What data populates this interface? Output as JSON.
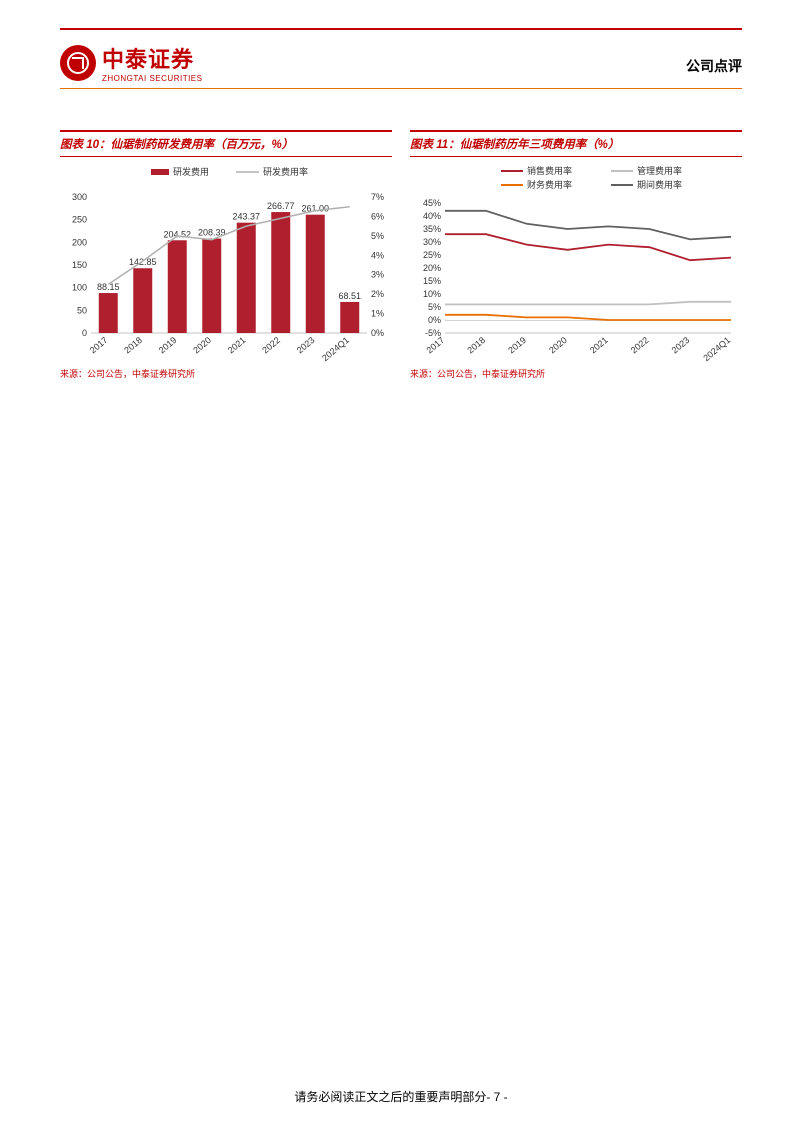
{
  "header": {
    "logo_cn": "中泰证券",
    "logo_en": "ZHONGTAI SECURITIES",
    "doc_type": "公司点评"
  },
  "chart10": {
    "title": "图表 10：仙琚制药研发费用率（百万元，%）",
    "type": "bar-line-combo",
    "legend_bar": "研发费用",
    "legend_line": "研发费用率",
    "categories": [
      "2017",
      "2018",
      "2019",
      "2020",
      "2021",
      "2022",
      "2023",
      "2024Q1"
    ],
    "bar_values": [
      88.15,
      142.85,
      204.52,
      208.39,
      243.37,
      266.77,
      261.0,
      68.51
    ],
    "bar_labels": [
      "88.15",
      "142.85",
      "204.52",
      "208.39",
      "243.37",
      "266.77",
      "261.00",
      "68.51"
    ],
    "line_values": [
      2.5,
      3.7,
      5.0,
      4.8,
      5.5,
      5.9,
      6.3,
      6.5
    ],
    "y1_ticks": [
      0,
      50,
      100,
      150,
      200,
      250,
      300
    ],
    "y2_ticks": [
      "0%",
      "1%",
      "2%",
      "3%",
      "4%",
      "5%",
      "6%",
      "7%"
    ],
    "y2_vals": [
      0,
      1,
      2,
      3,
      4,
      5,
      6,
      7
    ],
    "bar_color": "#b01f2e",
    "line_color": "#b0b0b0",
    "source": "来源：公司公告，中泰证券研究所"
  },
  "chart11": {
    "title": "图表 11：仙琚制药历年三项费用率（%）",
    "type": "multi-line",
    "categories": [
      "2017",
      "2018",
      "2019",
      "2020",
      "2021",
      "2022",
      "2023",
      "2024Q1"
    ],
    "legend": [
      "销售费用率",
      "管理费用率",
      "财务费用率",
      "期间费用率"
    ],
    "series": {
      "sales": {
        "color": "#b01f2e",
        "values": [
          33,
          33,
          29,
          27,
          29,
          28,
          23,
          24
        ]
      },
      "admin": {
        "color": "#c0c0c0",
        "values": [
          6,
          6,
          6,
          6,
          6,
          6,
          7,
          7
        ]
      },
      "finance": {
        "color": "#e97000",
        "values": [
          2,
          2,
          1,
          1,
          0,
          0,
          0,
          0
        ]
      },
      "period": {
        "color": "#606060",
        "values": [
          42,
          42,
          37,
          35,
          36,
          35,
          31,
          32
        ]
      }
    },
    "y_ticks": [
      "-5%",
      "0%",
      "5%",
      "10%",
      "15%",
      "20%",
      "25%",
      "30%",
      "35%",
      "40%",
      "45%"
    ],
    "y_vals": [
      -5,
      0,
      5,
      10,
      15,
      20,
      25,
      30,
      35,
      40,
      45
    ],
    "source": "来源：公司公告，中泰证券研究所"
  },
  "footer": {
    "text": "请务必阅读正文之后的重要声明部分",
    "page": "- 7 -"
  }
}
